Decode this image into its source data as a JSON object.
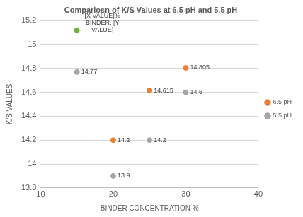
{
  "chart_data": {
    "type": "scatter",
    "title": "Compariosn of K/S Values at 6.5 pH and 5.5 pH",
    "x_label": "BINDER CONCENTRATION %",
    "y_label": "K/S VALUES",
    "series": [
      {
        "name": "6.5 pH",
        "color": "#ed7d31",
        "marker": "circle",
        "x": [
          20,
          25,
          30
        ],
        "values": [
          14.2,
          14.615,
          14.805
        ]
      },
      {
        "name": "5.5 pH",
        "color": "#a5a5a5",
        "marker": "circle",
        "x": [
          15,
          20,
          25,
          30
        ],
        "values": [
          14.77,
          13.9,
          14.2,
          14.6
        ]
      }
    ],
    "annotations": [
      {
        "text": "[X VALUE]% BINDER, [Y VALUE]",
        "x": 15,
        "y": 15.12,
        "color": "#70ad47"
      }
    ],
    "xlim": [
      10,
      40
    ],
    "xticks": [
      10,
      20,
      30,
      40
    ],
    "ylim": [
      13.8,
      15.2
    ],
    "yticks": [
      13.8,
      14,
      14.2,
      14.4,
      14.6,
      14.8,
      15,
      15.2
    ],
    "grid": true,
    "legend": "right",
    "data_labels": true
  }
}
